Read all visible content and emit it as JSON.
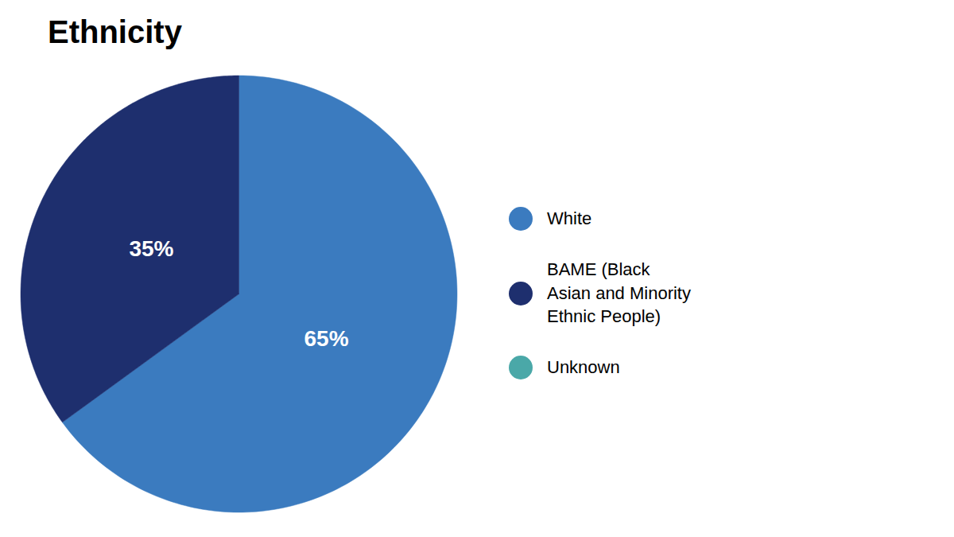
{
  "chart_data": {
    "type": "pie",
    "title": "Ethnicity",
    "categories": [
      "White",
      "BAME (Black\nAsian and Minority\nEthnic People)",
      "Unknown"
    ],
    "values": [
      65,
      35,
      null
    ],
    "value_labels": [
      "65%",
      "35%",
      null
    ],
    "colors": [
      "#3b7bbf",
      "#1e2f6e",
      "#4aa8a8"
    ],
    "data_labels": true,
    "legend": "right"
  }
}
